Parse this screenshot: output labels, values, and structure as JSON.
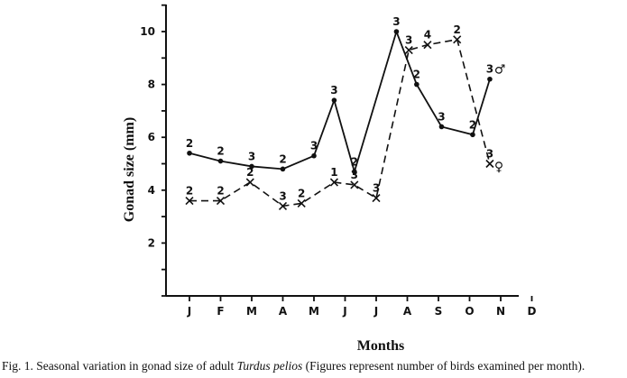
{
  "chart_data": {
    "type": "line",
    "xlabel": "Months",
    "ylabel": "Gonad size (mm)",
    "categories": [
      "J",
      "F",
      "M",
      "A",
      "M",
      "J",
      "J",
      "A",
      "S",
      "O",
      "N",
      "D"
    ],
    "ylim": [
      0,
      11
    ],
    "yticks": [
      2,
      4,
      6,
      8,
      10
    ],
    "grid": false,
    "series": [
      {
        "symbol": "♂",
        "marker": "dot",
        "line": "solid",
        "points": [
          {
            "x": 0,
            "y": 5.4,
            "n": "2"
          },
          {
            "x": 1,
            "y": 5.1,
            "n": "2"
          },
          {
            "x": 2,
            "y": 4.9,
            "n": "3"
          },
          {
            "x": 3,
            "y": 4.8,
            "n": "2"
          },
          {
            "x": 4,
            "y": 5.3,
            "n": "3"
          },
          {
            "x": 4.65,
            "y": 7.4,
            "n": "3"
          },
          {
            "x": 5.3,
            "y": 4.7,
            "n": "2"
          },
          {
            "x": 6.65,
            "y": 10.0,
            "n": "3"
          },
          {
            "x": 7.3,
            "y": 8.0,
            "n": "2"
          },
          {
            "x": 8.1,
            "y": 6.4,
            "n": "3"
          },
          {
            "x": 9.1,
            "y": 6.1,
            "n": "2"
          },
          {
            "x": 9.65,
            "y": 8.2,
            "n": "3"
          }
        ]
      },
      {
        "symbol": "♀",
        "marker": "x",
        "line": "dashed",
        "points": [
          {
            "x": 0,
            "y": 3.6,
            "n": "2"
          },
          {
            "x": 1,
            "y": 3.6,
            "n": "2"
          },
          {
            "x": 1.95,
            "y": 4.3,
            "n": "2"
          },
          {
            "x": 3,
            "y": 3.4,
            "n": "3"
          },
          {
            "x": 3.6,
            "y": 3.5,
            "n": "2"
          },
          {
            "x": 4.65,
            "y": 4.3,
            "n": "1"
          },
          {
            "x": 5.3,
            "y": 4.2,
            "n": "3"
          },
          {
            "x": 6,
            "y": 3.7,
            "n": "3"
          },
          {
            "x": 7.05,
            "y": 9.3,
            "n": "3"
          },
          {
            "x": 7.65,
            "y": 9.5,
            "n": "4"
          },
          {
            "x": 8.6,
            "y": 9.7,
            "n": "2"
          },
          {
            "x": 9.65,
            "y": 5.0,
            "n": "3"
          }
        ]
      }
    ]
  },
  "caption": {
    "prefix": "Fig. 1. Seasonal variation in gonad size of adult ",
    "species": "Turdus pelios",
    "suffix": " (Figures represent number of birds examined per month)."
  }
}
